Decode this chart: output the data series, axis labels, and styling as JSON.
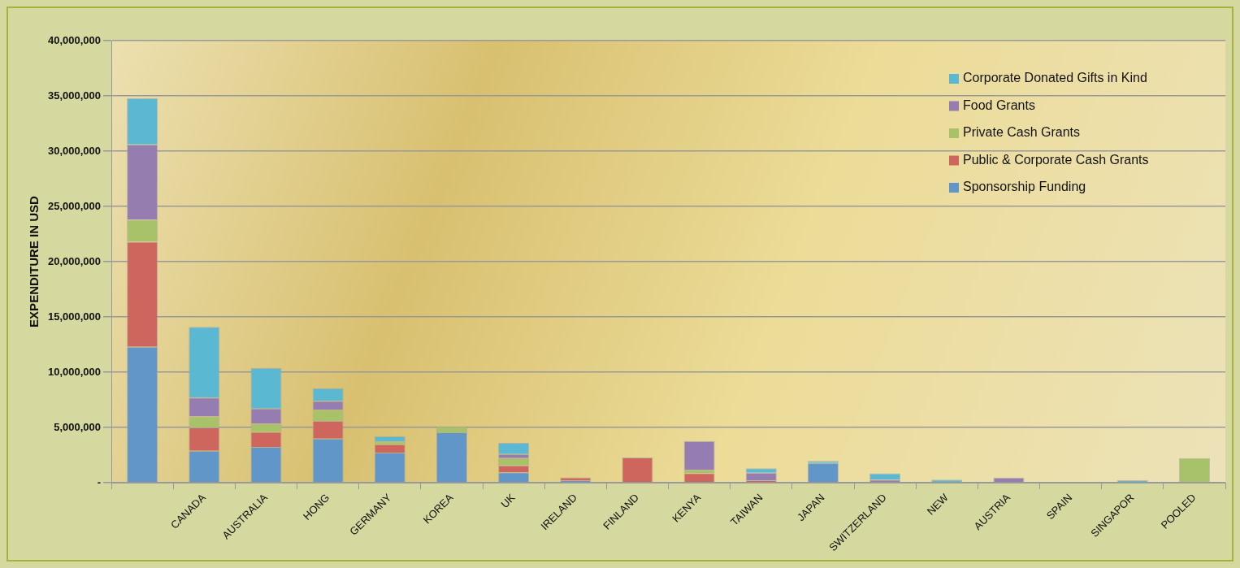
{
  "chart_data": {
    "type": "bar",
    "stacked": true,
    "ylabel": "EXPENDITURE IN USD",
    "categories": [
      null,
      "CANADA",
      "AUSTRALIA",
      "HONG",
      "GERMANY",
      "KOREA",
      "UK",
      "IRELAND",
      "FINLAND",
      "KENYA",
      "TAIWAN",
      "JAPAN",
      "SWITZERLAND",
      "NEW",
      "AUSTRIA",
      "SPAIN",
      "SINGAPOR",
      "POOLED"
    ],
    "series": [
      {
        "name": "Sponsorship Funding",
        "color": "#6096c8",
        "values": [
          12300000,
          2900000,
          3250000,
          4000000,
          2720000,
          4560000,
          950000,
          230000,
          null,
          null,
          null,
          1790000,
          null,
          null,
          null,
          null,
          null,
          null
        ]
      },
      {
        "name": "Public & Corporate Cash Grants",
        "color": "#cf665e",
        "values": [
          9500000,
          2100000,
          1350000,
          1600000,
          760000,
          null,
          610000,
          250000,
          2280000,
          870000,
          230000,
          null,
          null,
          null,
          null,
          null,
          null,
          null
        ]
      },
      {
        "name": "Private Cash Grants",
        "color": "#a8c26a",
        "values": [
          2000000,
          1000000,
          730000,
          1000000,
          260000,
          540000,
          670000,
          null,
          null,
          310000,
          null,
          null,
          null,
          null,
          null,
          null,
          null,
          2230000
        ]
      },
      {
        "name": "Food Grants",
        "color": "#957db2",
        "values": [
          6800000,
          1700000,
          1390000,
          800000,
          null,
          null,
          370000,
          null,
          null,
          2590000,
          670000,
          null,
          280000,
          null,
          460000,
          null,
          null,
          null
        ]
      },
      {
        "name": "Corporate Donated Gifts in Kind",
        "color": "#5bb8d2",
        "values": [
          4200000,
          6400000,
          3680000,
          1160000,
          450000,
          null,
          1000000,
          null,
          null,
          null,
          410000,
          180000,
          570000,
          280000,
          null,
          null,
          230000,
          null
        ]
      }
    ],
    "ylim": [
      0,
      40000000
    ],
    "yticks": [
      {
        "value": 0,
        "label": "-"
      },
      {
        "value": 5000000,
        "label": "5,000,000"
      },
      {
        "value": 10000000,
        "label": "10,000,000"
      },
      {
        "value": 15000000,
        "label": "15,000,000"
      },
      {
        "value": 20000000,
        "label": "20,000,000"
      },
      {
        "value": 25000000,
        "label": "25,000,000"
      },
      {
        "value": 30000000,
        "label": "30,000,000"
      },
      {
        "value": 35000000,
        "label": "35,000,000"
      },
      {
        "value": 40000000,
        "label": "40,000,000"
      }
    ],
    "grid": "y",
    "legend": "top right"
  }
}
